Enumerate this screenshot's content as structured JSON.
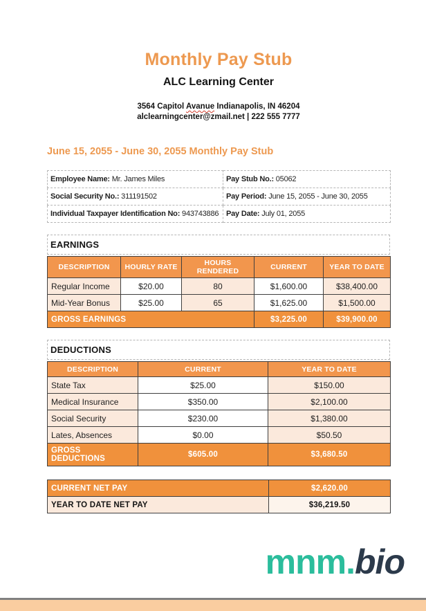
{
  "colors": {
    "accent": "#ED9950",
    "table_header_bg": "#F2964D",
    "table_total_bg": "#F0913C",
    "cell_peach": "#FBE9DC",
    "cell_peach_light": "#FDF4EC",
    "footer_bar": "#FACDA0",
    "footer_line": "#808080",
    "logo_teal": "#2BBD9C",
    "logo_dark": "#2C3A4B"
  },
  "header": {
    "title": "Monthly Pay Stub",
    "company": "ALC Learning Center",
    "address_prefix": "3564 Capitol ",
    "address_misspelled": "Avanue",
    "address_suffix": " Indianapolis, IN 46204",
    "contact": "alclearningcenter@zmail.net | 222 555 7777"
  },
  "period_heading": "June 15, 2055 - June 30, 2055 Monthly Pay Stub",
  "employee_info": {
    "employee_name_label": "Employee Name:",
    "employee_name": "Mr. James Miles",
    "pay_stub_no_label": "Pay Stub No.:",
    "pay_stub_no": "05062",
    "ssn_label": "Social Security No.:",
    "ssn": "311191502",
    "pay_period_label": "Pay Period:",
    "pay_period": "June 15, 2055 - June 30, 2055",
    "itin_label": "Individual Taxpayer Identification No:",
    "itin": "943743886",
    "pay_date_label": "Pay Date:",
    "pay_date": "July 01, 2055"
  },
  "earnings": {
    "section_title": "EARNINGS",
    "columns": [
      "DESCRIPTION",
      "HOURLY RATE",
      "HOURS RENDERED",
      "CURRENT",
      "YEAR TO DATE"
    ],
    "rows": [
      [
        "Regular Income",
        "$20.00",
        "80",
        "$1,600.00",
        "$38,400.00"
      ],
      [
        "Mid-Year Bonus",
        "$25.00",
        "65",
        "$1,625.00",
        "$1,500.00"
      ]
    ],
    "total": {
      "label": "GROSS EARNINGS",
      "current": "$3,225.00",
      "ytd": "$39,900.00"
    }
  },
  "deductions": {
    "section_title": "DEDUCTIONS",
    "columns": [
      "DESCRIPTION",
      "CURRENT",
      "YEAR TO DATE"
    ],
    "rows": [
      [
        "State Tax",
        "$25.00",
        "$150.00"
      ],
      [
        "Medical Insurance",
        "$350.00",
        "$2,100.00"
      ],
      [
        "Social Security",
        "$230.00",
        "$1,380.00"
      ],
      [
        "Lates, Absences",
        "$0.00",
        "$50.50"
      ]
    ],
    "total": {
      "label": "GROSS DEDUCTIONS",
      "current": "$605.00",
      "ytd": "$3,680.50"
    }
  },
  "net_pay": {
    "current_label": "CURRENT NET PAY",
    "current_value": "$2,620.00",
    "ytd_label": "YEAR TO DATE NET PAY",
    "ytd_value": "$36,219.50"
  },
  "logo": {
    "part1": "mnm.",
    "part2": "bio"
  }
}
